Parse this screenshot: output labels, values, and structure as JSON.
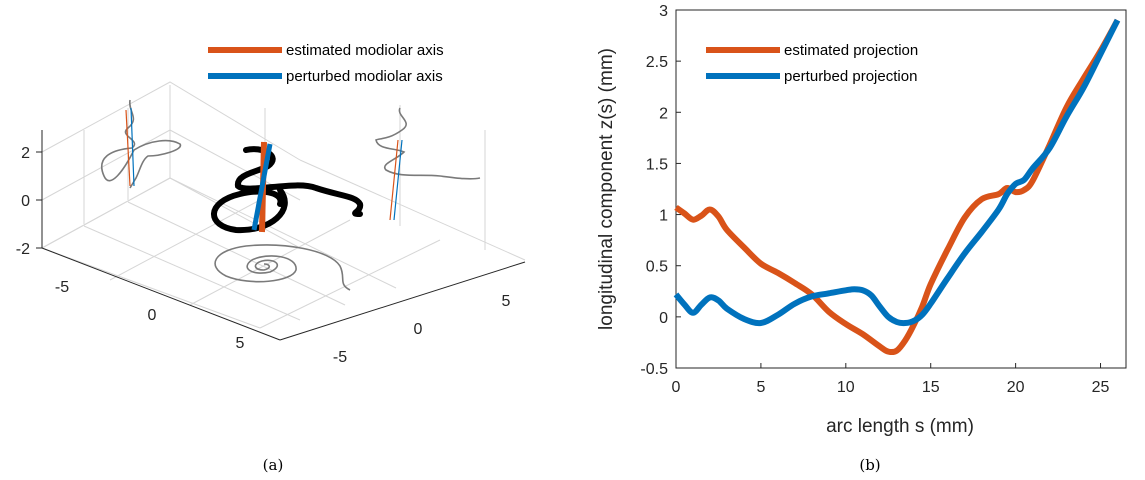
{
  "captions": {
    "a": "(a)",
    "b": "(b)"
  },
  "colors": {
    "estimated": "#d95319",
    "perturbed": "#0072bd",
    "curve3d": "#000000",
    "projection": "#7a7a7a"
  },
  "panel_a": {
    "legend": [
      {
        "label": "estimated modiolar axis",
        "color": "#d95319"
      },
      {
        "label": "perturbed modiolar axis",
        "color": "#0072bd"
      }
    ],
    "z_ticks": [
      "2",
      "0",
      "-2"
    ],
    "x_ticks": [
      "-5",
      "0",
      "5"
    ],
    "y_ticks": [
      "5",
      "0",
      "-5"
    ]
  },
  "chart_data": [
    {
      "type": "line",
      "panel": "(b)",
      "title": "",
      "xlabel": "arc length s (mm)",
      "ylabel": "longitudinal component z(s) (mm)",
      "xlim": [
        0,
        26.5
      ],
      "ylim": [
        -0.5,
        3
      ],
      "xticks": [
        "0",
        "5",
        "10",
        "15",
        "20",
        "25"
      ],
      "yticks": [
        "-0.5",
        "0",
        "0.5",
        "1",
        "1.5",
        "2",
        "2.5",
        "3"
      ],
      "legend_position": "top-left",
      "grid": false,
      "series": [
        {
          "name": "estimated projection",
          "color": "#d95319",
          "x": [
            0,
            0.5,
            1,
            1.5,
            2,
            2.5,
            3,
            4,
            5,
            6,
            7,
            8,
            9,
            10,
            11,
            12,
            12.5,
            13,
            13.5,
            14,
            14.5,
            15,
            16,
            17,
            18,
            19,
            19.5,
            20,
            20.5,
            21,
            22,
            23,
            24,
            25,
            26
          ],
          "y": [
            1.07,
            1.01,
            0.95,
            0.99,
            1.05,
            0.98,
            0.85,
            0.68,
            0.52,
            0.43,
            0.33,
            0.22,
            0.05,
            -0.07,
            -0.17,
            -0.29,
            -0.34,
            -0.33,
            -0.23,
            -0.08,
            0.1,
            0.32,
            0.66,
            0.97,
            1.15,
            1.2,
            1.26,
            1.22,
            1.24,
            1.33,
            1.68,
            2.05,
            2.33,
            2.6,
            2.9
          ]
        },
        {
          "name": "perturbed projection",
          "color": "#0072bd",
          "x": [
            0,
            0.5,
            1,
            1.5,
            2,
            2.5,
            3,
            4,
            5,
            6,
            7,
            8,
            9,
            10,
            10.5,
            11,
            11.5,
            12,
            12.5,
            13,
            13.5,
            14,
            14.5,
            15,
            16,
            17,
            18,
            19,
            19.5,
            20,
            20.5,
            21,
            22,
            23,
            24,
            25,
            26
          ],
          "y": [
            0.22,
            0.12,
            0.04,
            0.12,
            0.19,
            0.16,
            0.08,
            -0.02,
            -0.06,
            0.02,
            0.13,
            0.2,
            0.23,
            0.26,
            0.27,
            0.26,
            0.21,
            0.1,
            0.0,
            -0.05,
            -0.06,
            -0.04,
            0.02,
            0.13,
            0.38,
            0.62,
            0.83,
            1.05,
            1.2,
            1.3,
            1.34,
            1.45,
            1.65,
            1.96,
            2.24,
            2.57,
            2.9
          ]
        }
      ]
    }
  ]
}
